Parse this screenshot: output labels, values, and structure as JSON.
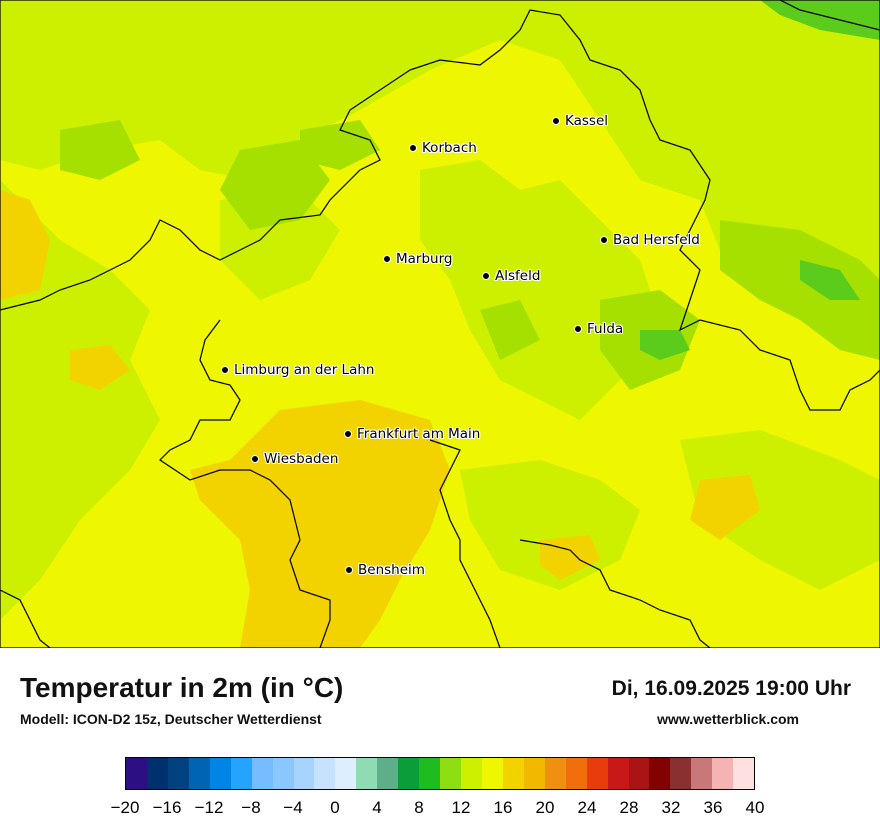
{
  "map": {
    "legend_title": "Temperatur in 2m (in °C)",
    "model_line": "Modell: ICON-D2 15z, Deutscher Wetterdienst",
    "datetime": "Di, 16.09.2025 19:00 Uhr",
    "website": "www.wetterblick.com",
    "cities": [
      {
        "name": "Kassel"
      },
      {
        "name": "Korbach"
      },
      {
        "name": "Bad Hersfeld"
      },
      {
        "name": "Marburg"
      },
      {
        "name": "Alsfeld"
      },
      {
        "name": "Fulda"
      },
      {
        "name": "Limburg an der Lahn"
      },
      {
        "name": "Frankfurt am Main"
      },
      {
        "name": "Wiesbaden"
      },
      {
        "name": "Bensheim"
      }
    ],
    "colorbar": {
      "colors": [
        "#2c0f82",
        "#00306e",
        "#00427f",
        "#0064b4",
        "#0085e6",
        "#24a3ff",
        "#75bdff",
        "#8ac7ff",
        "#a6d4ff",
        "#c6e2ff",
        "#dceeff",
        "#8fdcb4",
        "#5fae8a",
        "#0a9d3a",
        "#1fbc1f",
        "#8ede12",
        "#cdf000",
        "#eef600",
        "#f2d300",
        "#f2b800",
        "#f09010",
        "#f06e0c",
        "#e83c0c",
        "#c81818",
        "#aa1414",
        "#820000",
        "#8a3030",
        "#c87878",
        "#f5b4b4",
        "#ffe0e0"
      ],
      "tick_labels": [
        "−20",
        "−16",
        "−12",
        "−8",
        "−4",
        "0",
        "4",
        "8",
        "12",
        "16",
        "20",
        "24",
        "28",
        "32",
        "36",
        "40"
      ]
    }
  }
}
